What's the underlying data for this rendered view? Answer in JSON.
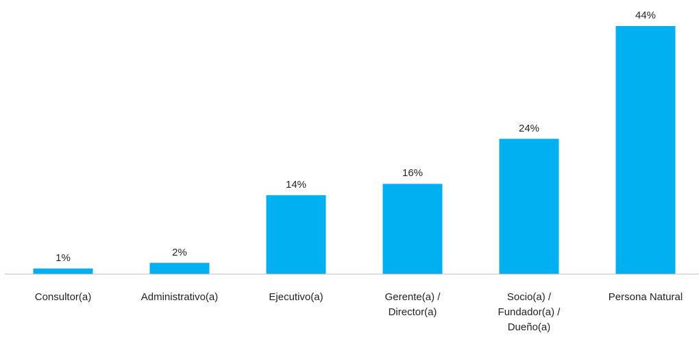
{
  "chart_data": {
    "type": "bar",
    "categories": [
      "Consultor(a)",
      "Administrativo(a)",
      "Ejecutivo(a)",
      "Gerente(a) /\nDirector(a)",
      "Socio(a) /\nFundador(a) /\nDueño(a)",
      "Persona Natural"
    ],
    "values": [
      1,
      2,
      14,
      16,
      24,
      44
    ],
    "value_labels": [
      "1%",
      "2%",
      "14%",
      "16%",
      "24%",
      "44%"
    ],
    "color": "#00b0f0"
  }
}
